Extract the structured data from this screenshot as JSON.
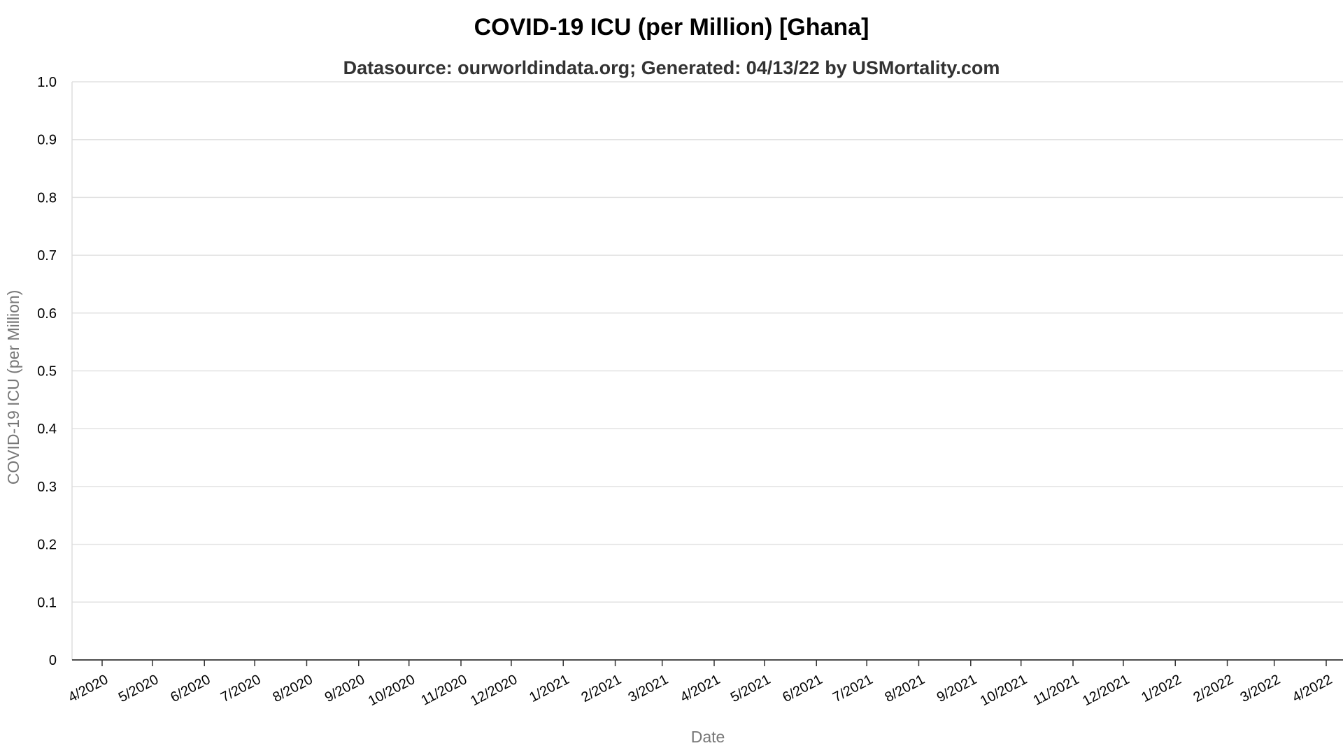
{
  "chart_data": {
    "type": "line",
    "title": "COVID-19 ICU (per Million) [Ghana]",
    "subtitle": "Datasource: ourworldindata.org; Generated: 04/13/22 by USMortality.com",
    "xlabel": "Date",
    "ylabel": "COVID-19 ICU (per Million)",
    "ylim": [
      0,
      1
    ],
    "yticks": [
      "0",
      "0.1",
      "0.2",
      "0.3",
      "0.4",
      "0.5",
      "0.6",
      "0.7",
      "0.8",
      "0.9",
      "1.0"
    ],
    "xticks": [
      "4/2020",
      "5/2020",
      "6/2020",
      "7/2020",
      "8/2020",
      "9/2020",
      "10/2020",
      "11/2020",
      "12/2020",
      "1/2021",
      "2/2021",
      "3/2021",
      "4/2021",
      "5/2021",
      "6/2021",
      "7/2021",
      "8/2021",
      "9/2021",
      "10/2021",
      "11/2021",
      "12/2021",
      "1/2022",
      "2/2022",
      "3/2022",
      "4/2022"
    ],
    "grid": true,
    "series": []
  }
}
